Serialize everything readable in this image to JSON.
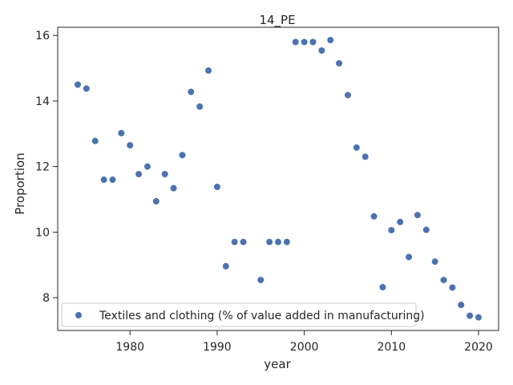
{
  "chart_data": {
    "type": "scatter",
    "title": "14_PE",
    "xlabel": "year",
    "ylabel": "Proportion",
    "xlim": [
      1971.7,
      2022.3
    ],
    "ylim": [
      7.0,
      16.25
    ],
    "xticks": [
      1980,
      1990,
      2000,
      2010,
      2020
    ],
    "yticks": [
      8,
      10,
      12,
      14,
      16
    ],
    "grid": false,
    "legend_position": "lower left",
    "series": [
      {
        "name": "Textiles and clothing (% of value added in manufacturing)",
        "color": "#4c72b0",
        "x": [
          1974,
          1975,
          1976,
          1977,
          1978,
          1979,
          1980,
          1981,
          1982,
          1983,
          1984,
          1985,
          1986,
          1987,
          1988,
          1989,
          1990,
          1991,
          1992,
          1993,
          1995,
          1996,
          1997,
          1998,
          1999,
          2000,
          2001,
          2002,
          2003,
          2004,
          2005,
          2006,
          2007,
          2008,
          2009,
          2010,
          2011,
          2012,
          2013,
          2014,
          2015,
          2016,
          2017,
          2018,
          2019,
          2020
        ],
        "y": [
          14.5,
          14.38,
          12.78,
          11.6,
          11.6,
          13.02,
          12.65,
          11.77,
          12.0,
          10.94,
          11.77,
          11.34,
          12.35,
          14.28,
          13.83,
          14.93,
          11.38,
          8.96,
          9.7,
          9.7,
          8.54,
          9.7,
          9.7,
          9.7,
          15.8,
          15.8,
          15.8,
          15.54,
          15.86,
          15.15,
          14.18,
          12.58,
          12.3,
          10.48,
          8.32,
          10.06,
          10.31,
          9.24,
          10.52,
          10.07,
          9.1,
          8.54,
          8.31,
          7.78,
          7.45,
          7.4
        ]
      }
    ]
  }
}
